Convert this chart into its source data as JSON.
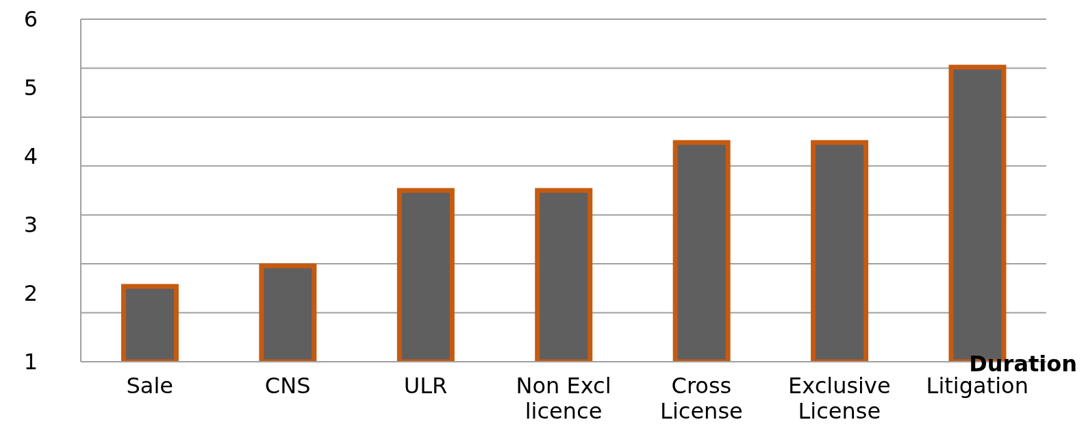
{
  "chart_data": {
    "type": "bar",
    "xlabel": "Duration",
    "categories": [
      "Sale",
      "CNS",
      "ULR",
      "Non Excl licence",
      "Cross License",
      "Exclusive License",
      "Litigation"
    ],
    "values": [
      2.1,
      2.4,
      3.5,
      3.5,
      4.2,
      4.2,
      5.3
    ],
    "color": "#5f5f5f",
    "ylim": [
      1,
      6
    ],
    "yticks": [
      {
        "value": 1,
        "label": "1"
      },
      {
        "value": 1.714,
        "label": null
      },
      2,
      {
        "value": 2.429,
        "label": null
      },
      3,
      {
        "value": 3.143,
        "label": null
      },
      {
        "value": 3.857,
        "label": null
      },
      4,
      {
        "value": 4.571,
        "label": null
      },
      5,
      {
        "value": 5.286,
        "label": null
      },
      {
        "value": 6,
        "label": "6"
      }
    ],
    "grid": "y"
  }
}
